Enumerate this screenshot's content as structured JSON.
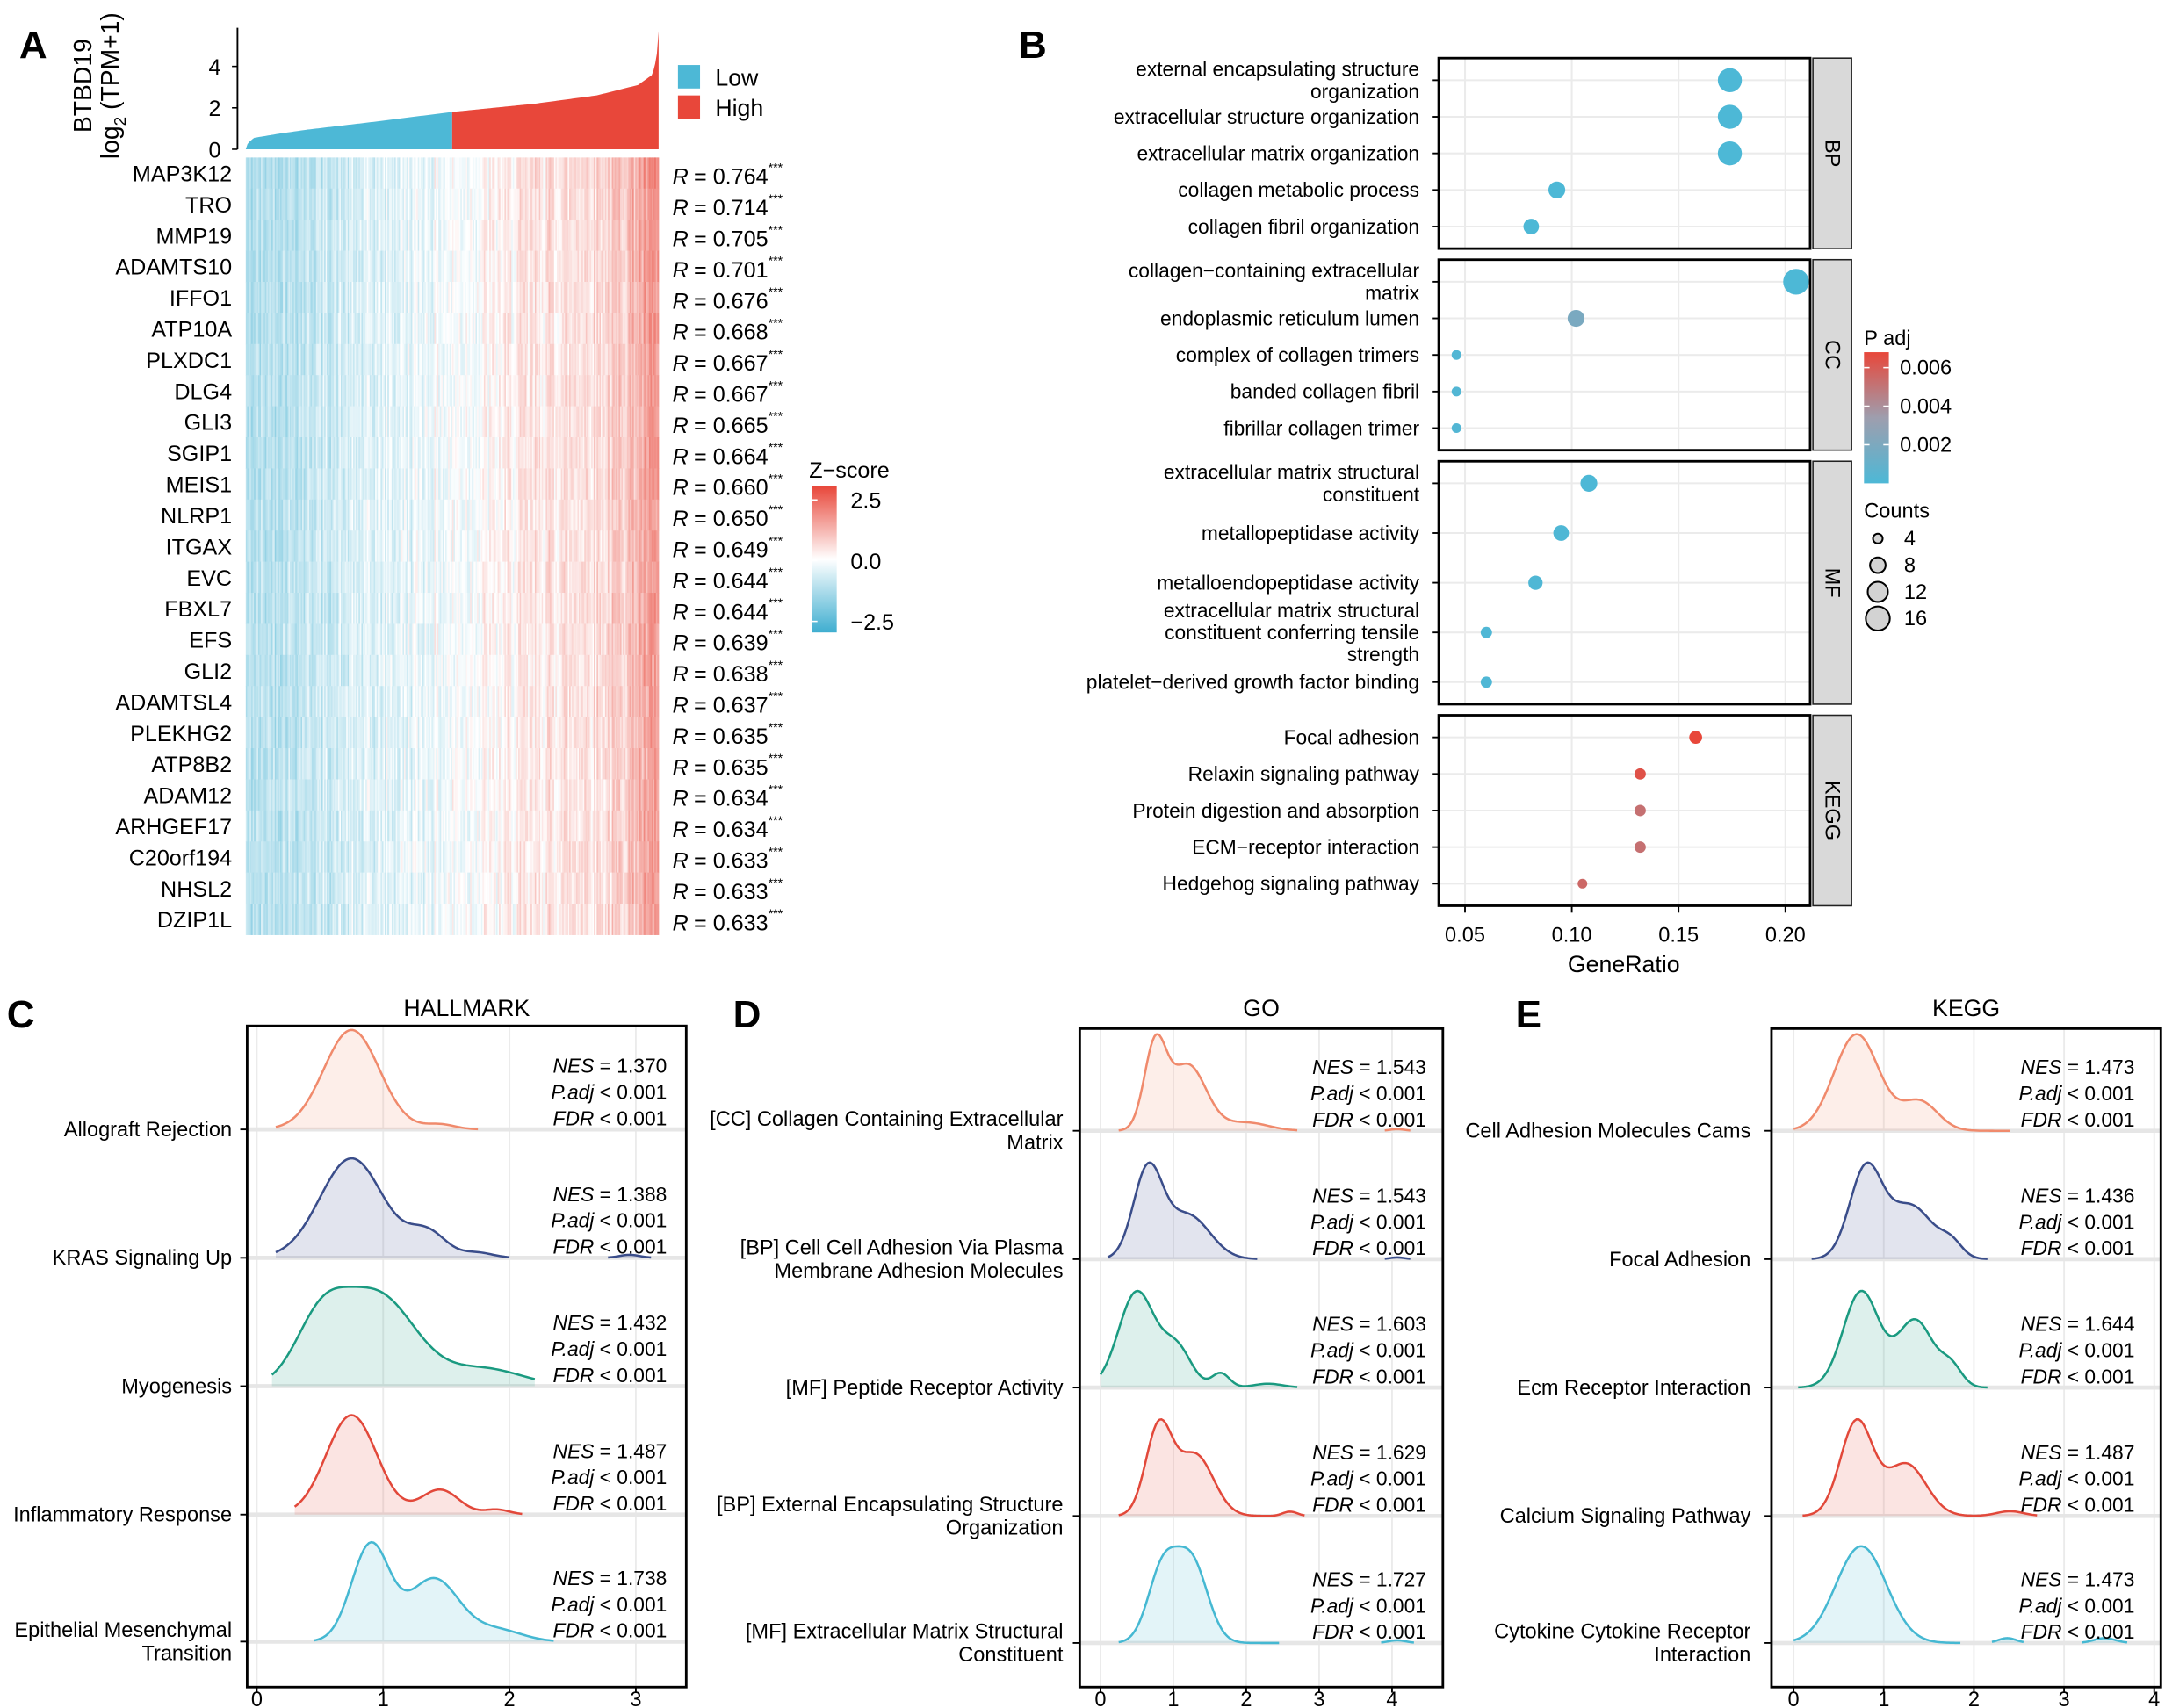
{
  "chart_data": [
    {
      "type": "heatmap",
      "panel": "A",
      "letter": "A",
      "bar_axis": {
        "title_gene": "BTBD19",
        "title_log": "log",
        "title_sub": "2",
        "title_rest": " (TPM+1)",
        "ticks": [
          "0",
          "2",
          "4"
        ],
        "tick_values": [
          0,
          2,
          4
        ],
        "ylim": [
          0,
          5.8
        ]
      },
      "expression_quantiles": [
        [
          0,
          0
        ],
        [
          0.005,
          0.3
        ],
        [
          0.02,
          0.55
        ],
        [
          0.08,
          0.75
        ],
        [
          0.15,
          0.95
        ],
        [
          0.3,
          1.3
        ],
        [
          0.5,
          1.8
        ],
        [
          0.7,
          2.2
        ],
        [
          0.85,
          2.6
        ],
        [
          0.95,
          3.1
        ],
        [
          0.985,
          3.6
        ],
        [
          0.995,
          4.4
        ],
        [
          1,
          5.7
        ]
      ],
      "group_split_fraction": 0.5,
      "legend": [
        {
          "label": "Low",
          "color": "#4DB8D6"
        },
        {
          "label": "High",
          "color": "#E8473A"
        }
      ],
      "zscore_legend": {
        "title": "Z−score",
        "ticks": [
          "2.5",
          "0.0",
          "−2.5"
        ],
        "range": [
          -2.5,
          2.5
        ]
      },
      "r_symbol": "R",
      "sig_symbol": "***",
      "genes": [
        {
          "gene": "MAP3K12",
          "r": "= 0.764"
        },
        {
          "gene": "TRO",
          "r": "= 0.714"
        },
        {
          "gene": "MMP19",
          "r": "= 0.705"
        },
        {
          "gene": "ADAMTS10",
          "r": "= 0.701"
        },
        {
          "gene": "IFFO1",
          "r": "= 0.676"
        },
        {
          "gene": "ATP10A",
          "r": "= 0.668"
        },
        {
          "gene": "PLXDC1",
          "r": "= 0.667"
        },
        {
          "gene": "DLG4",
          "r": "= 0.667"
        },
        {
          "gene": "GLI3",
          "r": "= 0.665"
        },
        {
          "gene": "SGIP1",
          "r": "= 0.664"
        },
        {
          "gene": "MEIS1",
          "r": "= 0.660"
        },
        {
          "gene": "NLRP1",
          "r": "= 0.650"
        },
        {
          "gene": "ITGAX",
          "r": "= 0.649"
        },
        {
          "gene": "EVC",
          "r": "= 0.644"
        },
        {
          "gene": "FBXL7",
          "r": "= 0.644"
        },
        {
          "gene": "EFS",
          "r": "= 0.639"
        },
        {
          "gene": "GLI2",
          "r": "= 0.638"
        },
        {
          "gene": "ADAMTSL4",
          "r": "= 0.637"
        },
        {
          "gene": "PLEKHG2",
          "r": "= 0.635"
        },
        {
          "gene": "ATP8B2",
          "r": "= 0.635"
        },
        {
          "gene": "ADAM12",
          "r": "= 0.634"
        },
        {
          "gene": "ARHGEF17",
          "r": "= 0.634"
        },
        {
          "gene": "C20orf194",
          "r": "= 0.633"
        },
        {
          "gene": "NHSL2",
          "r": "= 0.633"
        },
        {
          "gene": "DZIP1L",
          "r": "= 0.633"
        }
      ]
    },
    {
      "type": "scatter",
      "panel": "B",
      "letter": "B",
      "xlabel": "GeneRatio",
      "xlim": [
        0.0377,
        0.2116
      ],
      "xticks": [
        0.05,
        0.1,
        0.15,
        0.2
      ],
      "xtick_labels": [
        "0.05",
        "0.10",
        "0.15",
        "0.20"
      ],
      "padj_legend": {
        "title": "P adj",
        "ticks": [
          "0.006",
          "0.004",
          "0.002"
        ],
        "tick_values": [
          0.006,
          0.004,
          0.002
        ],
        "range": [
          0,
          0.0068
        ],
        "colors": [
          "#4DB8D6",
          "#9E9EAE",
          "#E8473A"
        ]
      },
      "count_legend": {
        "title": "Counts",
        "values": [
          4,
          8,
          12,
          16
        ],
        "labels": [
          "4",
          "8",
          "12",
          "16"
        ]
      },
      "facets": [
        {
          "name": "BP",
          "terms": [
            {
              "label": "external encapsulating structure\norganization",
              "ratio": 0.174,
              "count": 16,
              "padj": 0.0
            },
            {
              "label": "extracellular structure organization",
              "ratio": 0.174,
              "count": 16,
              "padj": 0.0
            },
            {
              "label": "extracellular matrix organization",
              "ratio": 0.174,
              "count": 16,
              "padj": 0.0
            },
            {
              "label": "collagen metabolic process",
              "ratio": 0.093,
              "count": 9,
              "padj": 0.0
            },
            {
              "label": "collagen fibril organization",
              "ratio": 0.081,
              "count": 8,
              "padj": 0.0
            }
          ]
        },
        {
          "name": "CC",
          "terms": [
            {
              "label": "collagen−containing extracellular\nmatrix",
              "ratio": 0.205,
              "count": 18,
              "padj": 0.0
            },
            {
              "label": "endoplasmic reticulum lumen",
              "ratio": 0.102,
              "count": 9,
              "padj": 0.0019
            },
            {
              "label": "complex of collagen trimers",
              "ratio": 0.046,
              "count": 4,
              "padj": 0.0002
            },
            {
              "label": "banded collagen fibril",
              "ratio": 0.046,
              "count": 4,
              "padj": 0.0002
            },
            {
              "label": "fibrillar collagen trimer",
              "ratio": 0.046,
              "count": 4,
              "padj": 0.0002
            }
          ]
        },
        {
          "name": "MF",
          "terms": [
            {
              "label": "extracellular matrix structural\nconstituent",
              "ratio": 0.108,
              "count": 9,
              "padj": 0.0
            },
            {
              "label": "metallopeptidase activity",
              "ratio": 0.095,
              "count": 8,
              "padj": 0.0001
            },
            {
              "label": "metalloendopeptidase activity",
              "ratio": 0.083,
              "count": 7,
              "padj": 0.0001
            },
            {
              "label": "extracellular matrix structural\nconstituent conferring tensile\nstrength",
              "ratio": 0.06,
              "count": 5,
              "padj": 0.0001
            },
            {
              "label": "platelet−derived growth factor binding",
              "ratio": 0.06,
              "count": 5,
              "padj": 0.0001
            }
          ]
        },
        {
          "name": "KEGG",
          "terms": [
            {
              "label": "Focal adhesion",
              "ratio": 0.158,
              "count": 6,
              "padj": 0.0068
            },
            {
              "label": "Relaxin signaling pathway",
              "ratio": 0.132,
              "count": 5,
              "padj": 0.0064
            },
            {
              "label": "Protein digestion and absorption",
              "ratio": 0.132,
              "count": 5,
              "padj": 0.0052
            },
            {
              "label": "ECM−receptor interaction",
              "ratio": 0.132,
              "count": 5,
              "padj": 0.0052
            },
            {
              "label": "Hedgehog signaling pathway",
              "ratio": 0.105,
              "count": 4,
              "padj": 0.0055
            }
          ]
        }
      ]
    },
    {
      "type": "area",
      "panel": "C",
      "letter": "C",
      "title": "HALLMARK",
      "xticks": [
        0,
        1,
        2,
        3
      ],
      "xtick_labels": [
        "0",
        "1",
        "2",
        "3"
      ],
      "stat_labels": {
        "nes": "NES",
        "padj": "P.adj",
        "fdr": "FDR"
      },
      "ridges": [
        {
          "label": "Allograft Rejection",
          "color": "#F08A6C",
          "nes": "= 1.370",
          "padj": "< 0.001",
          "fdr": "< 0.001",
          "segments": [
            [
              0.15,
              1.75
            ]
          ],
          "components": [
            [
              0.75,
              0.22,
              1
            ],
            [
              1.45,
              0.12,
              0.05
            ]
          ]
        },
        {
          "label": "KRAS Signaling Up",
          "color": "#3A4D8A",
          "nes": "= 1.388",
          "padj": "< 0.001",
          "fdr": "< 0.001",
          "segments": [
            [
              0.15,
              2.0
            ],
            [
              2.78,
              3.12
            ]
          ],
          "components": [
            [
              0.75,
              0.25,
              1
            ],
            [
              1.35,
              0.15,
              0.25
            ],
            [
              1.75,
              0.12,
              0.05
            ],
            [
              2.95,
              0.08,
              0.03
            ]
          ]
        },
        {
          "label": "Myogenesis",
          "color": "#1A9A80",
          "nes": "= 1.432",
          "padj": "< 0.001",
          "fdr": "< 0.001",
          "segments": [
            [
              0.12,
              2.2
            ]
          ],
          "components": [
            [
              0.5,
              0.2,
              0.5
            ],
            [
              0.95,
              0.3,
              0.8
            ],
            [
              1.8,
              0.3,
              0.15
            ]
          ]
        },
        {
          "label": "Inflammatory Response",
          "color": "#E2483A",
          "nes": "= 1.487",
          "padj": "< 0.001",
          "fdr": "< 0.001",
          "segments": [
            [
              0.3,
              2.1
            ]
          ],
          "components": [
            [
              0.75,
              0.2,
              1
            ],
            [
              1.45,
              0.15,
              0.25
            ],
            [
              1.9,
              0.1,
              0.05
            ]
          ]
        },
        {
          "label": "Epithelial Mesenchymal\nTransition",
          "color": "#45B8D2",
          "nes": "= 1.738",
          "padj": "< 0.001",
          "fdr": "< 0.001",
          "segments": [
            [
              0.45,
              2.35
            ]
          ],
          "components": [
            [
              0.9,
              0.15,
              1
            ],
            [
              1.4,
              0.2,
              0.65
            ],
            [
              1.9,
              0.2,
              0.12
            ]
          ]
        }
      ]
    },
    {
      "type": "area",
      "panel": "D",
      "letter": "D",
      "title": "GO",
      "xticks": [
        0,
        1,
        2,
        3,
        4
      ],
      "xtick_labels": [
        "0",
        "1",
        "2",
        "3",
        "4"
      ],
      "stat_labels": {
        "nes": "NES",
        "padj": "P.adj",
        "fdr": "FDR"
      },
      "ridges": [
        {
          "label": "[CC] Collagen Containing Extracellular\nMatrix",
          "color": "#F08A6C",
          "nes": "= 1.543",
          "padj": "< 0.001",
          "fdr": "< 0.001",
          "segments": [
            [
              0.25,
              2.7
            ],
            [
              3.9,
              4.25
            ]
          ],
          "components": [
            [
              0.75,
              0.15,
              1
            ],
            [
              1.2,
              0.25,
              0.8
            ],
            [
              2.0,
              0.3,
              0.1
            ],
            [
              4.07,
              0.1,
              0.02
            ]
          ]
        },
        {
          "label": "[BP] Cell Cell Adhesion Via Plasma\nMembrane Adhesion Molecules",
          "color": "#3A4D8A",
          "nes": "= 1.543",
          "padj": "< 0.001",
          "fdr": "< 0.001",
          "segments": [
            [
              0.1,
              2.15
            ],
            [
              3.9,
              4.25
            ]
          ],
          "components": [
            [
              0.65,
              0.2,
              1
            ],
            [
              1.2,
              0.3,
              0.5
            ],
            [
              4.07,
              0.1,
              0.02
            ]
          ]
        },
        {
          "label": "[MF] Peptide Receptor Activity",
          "color": "#1A9A80",
          "nes": "= 1.603",
          "padj": "< 0.001",
          "fdr": "< 0.001",
          "segments": [
            [
              0.0,
              2.7
            ]
          ],
          "components": [
            [
              0.5,
              0.25,
              1
            ],
            [
              1.05,
              0.2,
              0.4
            ],
            [
              1.65,
              0.12,
              0.15
            ],
            [
              2.3,
              0.2,
              0.04
            ]
          ]
        },
        {
          "label": "[BP] External Encapsulating Structure\nOrganization",
          "color": "#E2483A",
          "nes": "= 1.629",
          "padj": "< 0.001",
          "fdr": "< 0.001",
          "segments": [
            [
              0.25,
              2.8
            ]
          ],
          "components": [
            [
              0.8,
              0.18,
              1
            ],
            [
              1.3,
              0.25,
              0.7
            ],
            [
              2.6,
              0.1,
              0.05
            ]
          ]
        },
        {
          "label": "[MF] Extracellular Matrix Structural\nConstituent",
          "color": "#45B8D2",
          "nes": "= 1.727",
          "padj": "< 0.001",
          "fdr": "< 0.001",
          "segments": [
            [
              0.25,
              2.45
            ],
            [
              3.85,
              4.3
            ]
          ],
          "components": [
            [
              0.85,
              0.2,
              0.8
            ],
            [
              1.25,
              0.22,
              0.9
            ],
            [
              4.07,
              0.12,
              0.03
            ]
          ]
        }
      ]
    },
    {
      "type": "area",
      "panel": "E",
      "letter": "E",
      "title": "KEGG",
      "xticks": [
        0,
        1,
        2,
        3,
        4
      ],
      "xtick_labels": [
        "0",
        "1",
        "2",
        "3",
        "4"
      ],
      "stat_labels": {
        "nes": "NES",
        "padj": "P.adj",
        "fdr": "FDR"
      },
      "ridges": [
        {
          "label": "Cell Adhesion Molecules Cams",
          "color": "#F08A6C",
          "nes": "= 1.473",
          "padj": "< 0.001",
          "fdr": "< 0.001",
          "segments": [
            [
              0.0,
              2.4
            ]
          ],
          "components": [
            [
              0.7,
              0.25,
              1
            ],
            [
              1.4,
              0.2,
              0.3
            ]
          ]
        },
        {
          "label": "Focal Adhesion",
          "color": "#3A4D8A",
          "nes": "= 1.436",
          "padj": "< 0.001",
          "fdr": "< 0.001",
          "segments": [
            [
              0.2,
              2.15
            ]
          ],
          "components": [
            [
              0.8,
              0.18,
              1
            ],
            [
              1.3,
              0.25,
              0.6
            ],
            [
              1.75,
              0.12,
              0.15
            ]
          ]
        },
        {
          "label": "Ecm Receptor Interaction",
          "color": "#1A9A80",
          "nes": "= 1.644",
          "padj": "< 0.001",
          "fdr": "< 0.001",
          "segments": [
            [
              0.05,
              2.15
            ]
          ],
          "components": [
            [
              0.75,
              0.2,
              1
            ],
            [
              1.35,
              0.2,
              0.7
            ],
            [
              1.75,
              0.12,
              0.2
            ]
          ]
        },
        {
          "label": "Calcium Signaling Pathway",
          "color": "#E2483A",
          "nes": "= 1.487",
          "padj": "< 0.001",
          "fdr": "< 0.001",
          "segments": [
            [
              0.1,
              2.7
            ]
          ],
          "components": [
            [
              0.7,
              0.18,
              1
            ],
            [
              1.25,
              0.22,
              0.55
            ],
            [
              2.4,
              0.15,
              0.05
            ]
          ]
        },
        {
          "label": "Cytokine Cytokine Receptor\nInteraction",
          "color": "#45B8D2",
          "nes": "= 1.473",
          "padj": "< 0.001",
          "fdr": "< 0.001",
          "segments": [
            [
              0.0,
              1.85
            ],
            [
              2.2,
              2.55
            ],
            [
              3.2,
              3.7
            ]
          ],
          "components": [
            [
              0.75,
              0.28,
              1
            ],
            [
              2.37,
              0.1,
              0.05
            ],
            [
              3.45,
              0.12,
              0.05
            ]
          ]
        }
      ]
    }
  ]
}
